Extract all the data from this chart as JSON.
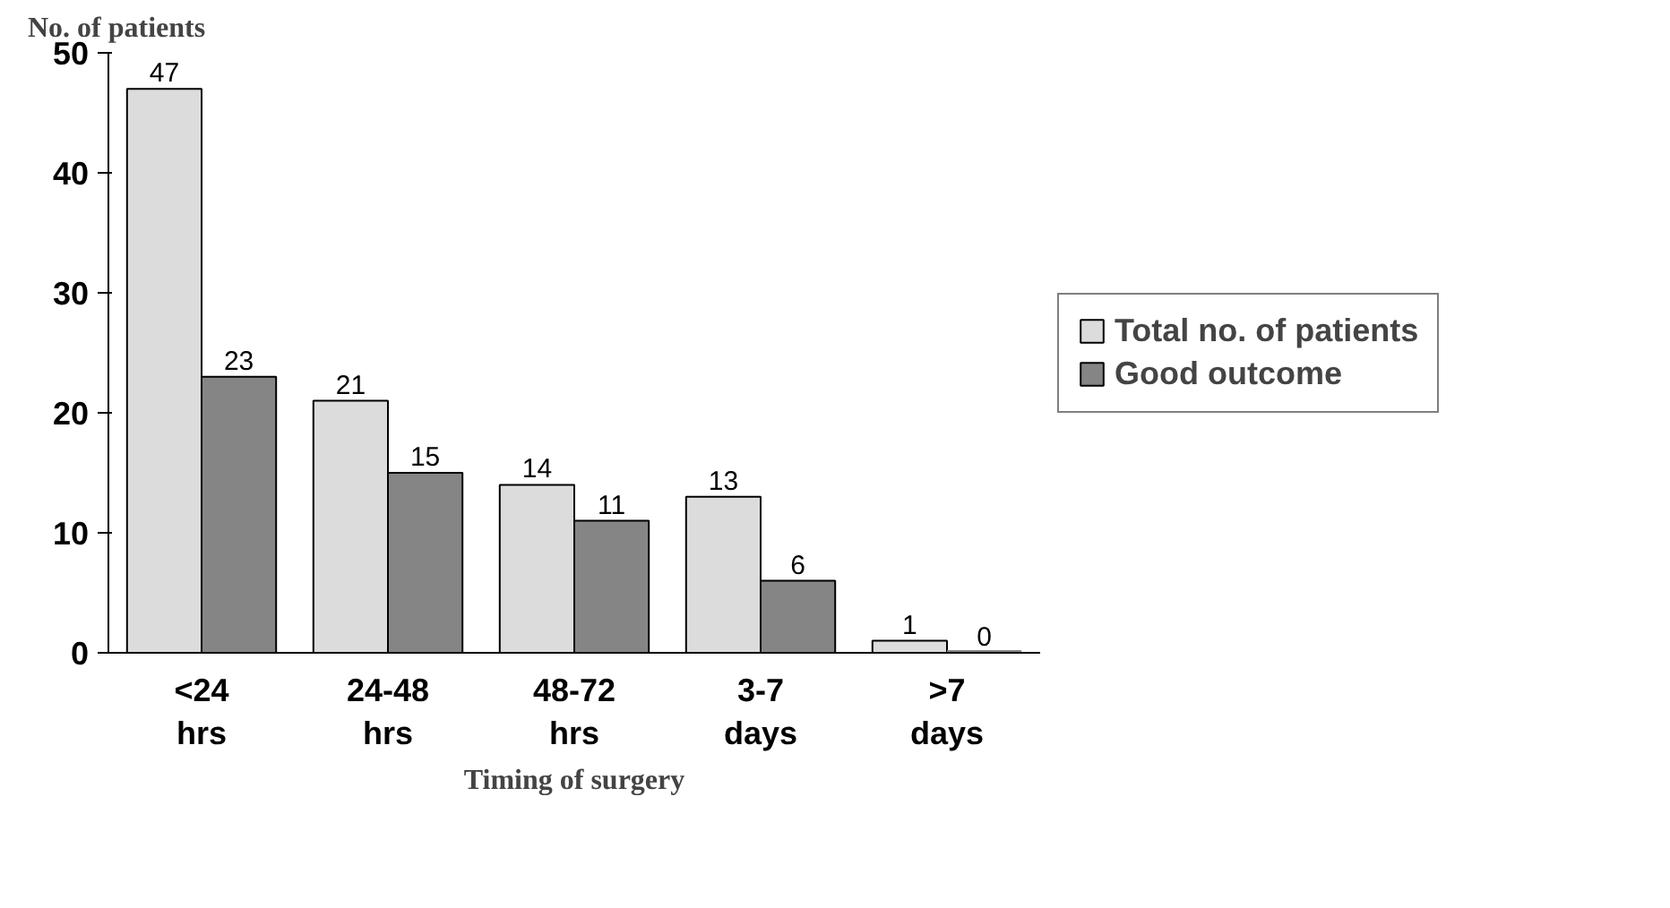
{
  "chart_data": {
    "type": "bar",
    "ylabel": "No. of patients",
    "xlabel": "Timing of surgery",
    "categories": [
      "<24\nhrs",
      "24-48\nhrs",
      "48-72\nhrs",
      "3-7\ndays",
      ">7\ndays"
    ],
    "series": [
      {
        "name": "Total no. of patients",
        "color": "#dcdcdc",
        "values": [
          47,
          21,
          14,
          13,
          1
        ]
      },
      {
        "name": "Good outcome",
        "color": "#858585",
        "values": [
          23,
          15,
          11,
          6,
          0
        ]
      }
    ],
    "ylim": [
      0,
      50
    ],
    "yticks": [
      0,
      10,
      20,
      30,
      40,
      50
    ],
    "data_labels": true,
    "grid": false,
    "legend": "right"
  }
}
